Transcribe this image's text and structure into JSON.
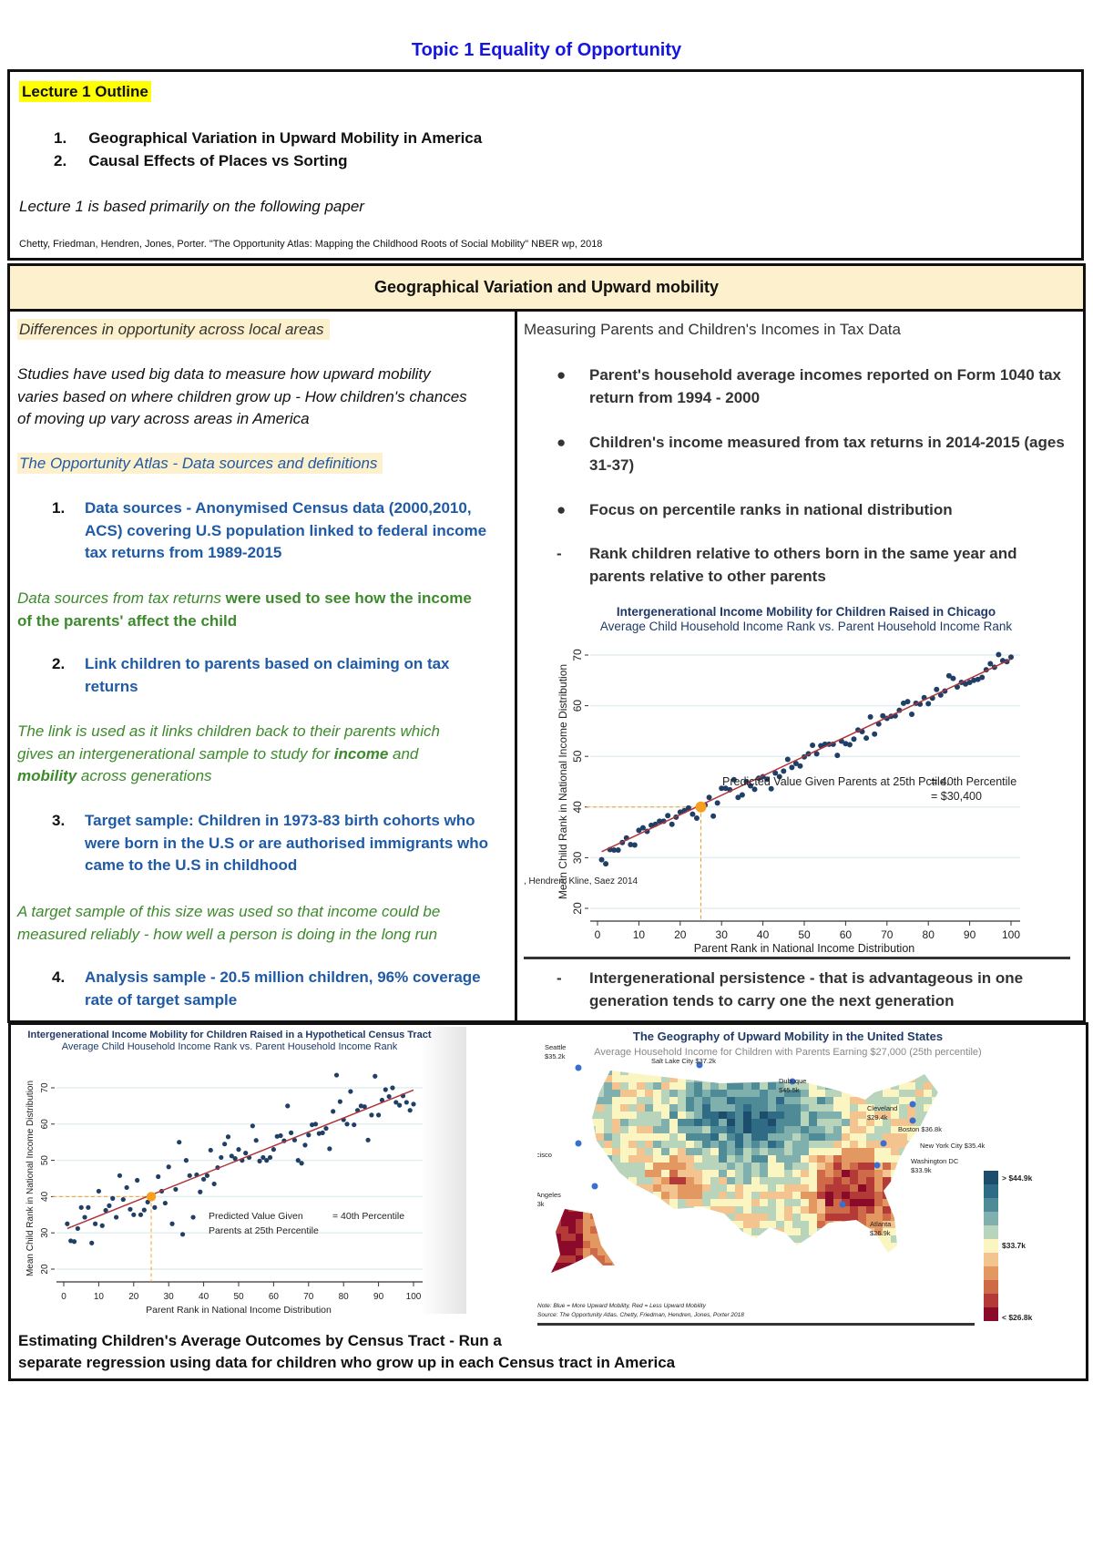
{
  "page_title": "Topic 1 Equality of Opportunity",
  "outline": {
    "heading": "Lecture 1 Outline",
    "items": [
      {
        "num": "1.",
        "text": "Geographical Variation in Upward Mobility in America"
      },
      {
        "num": "2.",
        "text": "Causal Effects of Places vs Sorting"
      }
    ],
    "note": "Lecture 1 is based primarily on the following paper",
    "citation": "Chetty, Friedman, Hendren, Jones, Porter. \"The Opportunity Atlas: Mapping the Childhood Roots of Social Mobility\" NBER wp, 2018"
  },
  "section_header": "Geographical Variation and Upward mobility",
  "left": {
    "heading1": "Differences in opportunity across local areas",
    "para1": [
      "Studies have used big data to measure how upward mobility",
      "varies based on where children grow up - How children's chances",
      "of moving up vary across areas in America"
    ],
    "heading2": "The Opportunity Atlas - Data sources and definitions",
    "item1": {
      "num": "1.",
      "lines": [
        "Data sources - Anonymised Census data (2000,2010,",
        "ACS) covering U.S population linked to federal income",
        "tax returns from 1989-2015"
      ]
    },
    "note1": {
      "italic": "Data sources from tax returns",
      "rest": " were used to see how the income",
      "line2": "of the parents' affect the child"
    },
    "item2": {
      "num": "2.",
      "lines": [
        "Link children to parents based on claiming on tax",
        "returns"
      ]
    },
    "note2": {
      "line1": "The link is used as it links children back to their parents which",
      "line2a": "gives an intergenerational sample to study for ",
      "line2b": "income",
      "line2c": " and",
      "line3a": "mobility",
      "line3b": " across generations"
    },
    "item3": {
      "num": "3.",
      "lines": [
        "Target sample: Children in 1973-83 birth cohorts who",
        "were born in the U.S or are authorised immigrants who",
        "came to the U.S in childhood"
      ]
    },
    "note3": [
      "A target sample of this size was used so that income could be",
      "measured reliably - how well a person is doing in the long run"
    ],
    "item4": {
      "num": "4.",
      "lines": [
        "Analysis sample - 20.5 million children, 96% coverage",
        "rate of target sample"
      ]
    }
  },
  "right": {
    "heading": "Measuring Parents and Children's Incomes in Tax Data",
    "bullets": [
      {
        "marker": "●",
        "lines": [
          "Parent's household average incomes reported on Form 1040 tax",
          "return from 1994 - 2000"
        ]
      },
      {
        "marker": "●",
        "lines": [
          "Children's income measured from tax returns in 2014-2015 (ages",
          "31-37)"
        ]
      },
      {
        "marker": "●",
        "lines": [
          "Focus on percentile ranks in national distribution"
        ]
      },
      {
        "marker": "-",
        "lines": [
          "Rank children relative to others born in the same year and",
          "parents relative to other parents"
        ]
      }
    ],
    "last": {
      "marker": "-",
      "lines": [
        "Intergenerational persistence - that is advantageous in one",
        "generation tends to carry one the next generation"
      ]
    }
  },
  "chart_data": [
    {
      "type": "scatter",
      "title": "Intergenerational Income Mobility for Children Raised in Chicago",
      "subtitle": "Average Child Household Income Rank vs. Parent Household Income Rank",
      "xlabel": "Parent Rank in National Income Distribution",
      "ylabel": "Mean Child Rank in National Income Distribution",
      "xlim": [
        0,
        100
      ],
      "ylim": [
        20,
        70
      ],
      "xticks": [
        0,
        10,
        20,
        30,
        40,
        50,
        60,
        70,
        80,
        90,
        100
      ],
      "yticks": [
        20,
        30,
        40,
        50,
        60,
        70
      ],
      "grid": true,
      "annotation": "Predicted Value Given Parents at 25th Pctile.",
      "annotation_value1": "= 40th Percentile",
      "annotation_value2": "= $30,400",
      "source": ", Hendren, Kline, Saez 2014",
      "highlight": {
        "x": 25,
        "y": 40
      },
      "fit": {
        "intercept": 30.8,
        "slope": 0.384
      },
      "colors": {
        "points": "#1f3f66",
        "fit": "#b0353b",
        "highlight": "#f7a020"
      },
      "points": [
        [
          1,
          29.6
        ],
        [
          2,
          28.8
        ],
        [
          3,
          31.6
        ],
        [
          4,
          31.5
        ],
        [
          5,
          31.5
        ],
        [
          6,
          33
        ],
        [
          7,
          33.9
        ],
        [
          8,
          32.6
        ],
        [
          9,
          32.5
        ],
        [
          10,
          35.4
        ],
        [
          11,
          35.9
        ],
        [
          12,
          35.2
        ],
        [
          13,
          36.4
        ],
        [
          14,
          36.6
        ],
        [
          15,
          37.2
        ],
        [
          16,
          37.2
        ],
        [
          17,
          38.3
        ],
        [
          18,
          36.6
        ],
        [
          19,
          38
        ],
        [
          20,
          39
        ],
        [
          21,
          39.3
        ],
        [
          22,
          39.8
        ],
        [
          23,
          38.6
        ],
        [
          24,
          37.8
        ],
        [
          26,
          40.4
        ],
        [
          27,
          41.9
        ],
        [
          28,
          38.2
        ],
        [
          29,
          40.8
        ],
        [
          30,
          43.7
        ],
        [
          31,
          43.7
        ],
        [
          32,
          43.4
        ],
        [
          33,
          45.4
        ],
        [
          34,
          41.9
        ],
        [
          35,
          42.4
        ],
        [
          36,
          45
        ],
        [
          37,
          44.2
        ],
        [
          38,
          43.5
        ],
        [
          39,
          45.7
        ],
        [
          40,
          46
        ],
        [
          41,
          45.5
        ],
        [
          42,
          43.6
        ],
        [
          43,
          46.7
        ],
        [
          44,
          46
        ],
        [
          45,
          47.1
        ],
        [
          46,
          49.4
        ],
        [
          47,
          47.8
        ],
        [
          48,
          48.6
        ],
        [
          49,
          48.1
        ],
        [
          50,
          49.9
        ],
        [
          51,
          50.5
        ],
        [
          52,
          52.2
        ],
        [
          53,
          50.5
        ],
        [
          54,
          52.1
        ],
        [
          55,
          52.4
        ],
        [
          56,
          52.4
        ],
        [
          57,
          52.4
        ],
        [
          58,
          50.2
        ],
        [
          59,
          53
        ],
        [
          60,
          52.5
        ],
        [
          61,
          52.3
        ],
        [
          62,
          53.4
        ],
        [
          63,
          55.2
        ],
        [
          64,
          54.9
        ],
        [
          65,
          53.6
        ],
        [
          66,
          57.8
        ],
        [
          67,
          54.4
        ],
        [
          68,
          56.4
        ],
        [
          69,
          58
        ],
        [
          70,
          57.5
        ],
        [
          71,
          57.9
        ],
        [
          72,
          58
        ],
        [
          73,
          59.1
        ],
        [
          74,
          60.5
        ],
        [
          75,
          60.8
        ],
        [
          76,
          58.3
        ],
        [
          77,
          60.5
        ],
        [
          78,
          60.3
        ],
        [
          79,
          61.6
        ],
        [
          80,
          60.4
        ],
        [
          81,
          61.5
        ],
        [
          82,
          63.2
        ],
        [
          83,
          62.1
        ],
        [
          84,
          62.9
        ],
        [
          85,
          65.9
        ],
        [
          86,
          65.4
        ],
        [
          87,
          63.7
        ],
        [
          88,
          64.6
        ],
        [
          89,
          64.3
        ],
        [
          90,
          64.6
        ],
        [
          91,
          65
        ],
        [
          92,
          65.2
        ],
        [
          93,
          65.6
        ],
        [
          94,
          67.1
        ],
        [
          95,
          68.3
        ],
        [
          96,
          67.6
        ],
        [
          97,
          70.1
        ],
        [
          98,
          68.9
        ],
        [
          99,
          68.7
        ],
        [
          100,
          69.6
        ]
      ]
    },
    {
      "type": "scatter",
      "title": "Intergenerational Income Mobility for Children Raised in a Hypothetical Census Tract",
      "subtitle": "Average Child Household Income Rank vs. Parent Household Income Rank",
      "xlabel": "Parent Rank in National Income Distribution",
      "ylabel": "Mean Child Rank in National Income Distribution",
      "xlim": [
        0,
        100
      ],
      "ylim": [
        20,
        70
      ],
      "xticks": [
        0,
        10,
        20,
        30,
        40,
        50,
        60,
        70,
        80,
        90,
        100
      ],
      "yticks": [
        20,
        30,
        40,
        50,
        60,
        70
      ],
      "grid": true,
      "annotation1": "Predicted Value Given",
      "annotation2": "Parents at 25th Percentile",
      "annotation_value": "= 40th Percentile",
      "highlight": {
        "x": 25,
        "y": 40
      },
      "fit": {
        "intercept": 30.8,
        "slope": 0.386
      },
      "colors": {
        "points": "#1f3f66",
        "fit": "#b0353b",
        "highlight": "#f7a020"
      },
      "points": [
        [
          1,
          32.5
        ],
        [
          2,
          27.8
        ],
        [
          3,
          27.6
        ],
        [
          4,
          31.2
        ],
        [
          5,
          37
        ],
        [
          6,
          34.3
        ],
        [
          7,
          37
        ],
        [
          8,
          27.2
        ],
        [
          9,
          32.5
        ],
        [
          10,
          41.5
        ],
        [
          11,
          32
        ],
        [
          12,
          36.2
        ],
        [
          13,
          37.5
        ],
        [
          14,
          39.5
        ],
        [
          15,
          34.3
        ],
        [
          16,
          45.8
        ],
        [
          17,
          39.2
        ],
        [
          18,
          42.5
        ],
        [
          19,
          36.5
        ],
        [
          20,
          35
        ],
        [
          21,
          44.5
        ],
        [
          22,
          35
        ],
        [
          23,
          36.3
        ],
        [
          24,
          38.5
        ],
        [
          26,
          37
        ],
        [
          27,
          45.5
        ],
        [
          28,
          41.5
        ],
        [
          29,
          38.2
        ],
        [
          30,
          48.2
        ],
        [
          31,
          32.5
        ],
        [
          32,
          42
        ],
        [
          33,
          55
        ],
        [
          34,
          29.6
        ],
        [
          35,
          50
        ],
        [
          36,
          45.8
        ],
        [
          37,
          34.3
        ],
        [
          38,
          46
        ],
        [
          39,
          41.3
        ],
        [
          40,
          44.8
        ],
        [
          41,
          45.8
        ],
        [
          42,
          52.8
        ],
        [
          43,
          43.5
        ],
        [
          44,
          48
        ],
        [
          45,
          50.8
        ],
        [
          46,
          54.5
        ],
        [
          47,
          56.5
        ],
        [
          48,
          51.2
        ],
        [
          49,
          50.5
        ],
        [
          50,
          53
        ],
        [
          51,
          50
        ],
        [
          52,
          52
        ],
        [
          53,
          50.8
        ],
        [
          54,
          59.5
        ],
        [
          55,
          55.5
        ],
        [
          56,
          49.8
        ],
        [
          57,
          50.8
        ],
        [
          58,
          50
        ],
        [
          59,
          50.8
        ],
        [
          60,
          53
        ],
        [
          61,
          56.6
        ],
        [
          62,
          56.8
        ],
        [
          63,
          55.4
        ],
        [
          64,
          65
        ],
        [
          65,
          57.6
        ],
        [
          66,
          55.6
        ],
        [
          67,
          50
        ],
        [
          68,
          49.2
        ],
        [
          69,
          54.2
        ],
        [
          70,
          57
        ],
        [
          71,
          59.8
        ],
        [
          72,
          60
        ],
        [
          73,
          57.4
        ],
        [
          74,
          57.6
        ],
        [
          75,
          58.8
        ],
        [
          76,
          53.2
        ],
        [
          77,
          63.5
        ],
        [
          78,
          73.5
        ],
        [
          79,
          66.2
        ],
        [
          80,
          61.2
        ],
        [
          81,
          60
        ],
        [
          82,
          69
        ],
        [
          83,
          59.8
        ],
        [
          84,
          63.8
        ],
        [
          85,
          65
        ],
        [
          86,
          64.8
        ],
        [
          87,
          55.6
        ],
        [
          88,
          62.5
        ],
        [
          89,
          73.2
        ],
        [
          90,
          62.5
        ],
        [
          91,
          66.6
        ],
        [
          92,
          69.5
        ],
        [
          93,
          67.6
        ],
        [
          94,
          70
        ],
        [
          95,
          66
        ],
        [
          96,
          65.2
        ],
        [
          97,
          67.8
        ],
        [
          98,
          66
        ],
        [
          99,
          63.8
        ],
        [
          100,
          65.5
        ]
      ]
    }
  ],
  "map": {
    "title": "The Geography of Upward Mobility in the United States",
    "subtitle": "Average Household Income for Children with Parents Earning $27,000 (25th percentile)",
    "legend": [
      "> $44.9k",
      "$33.7k",
      "< $26.8k"
    ],
    "legend_colors": [
      "#1d4d6d",
      "#2f6b84",
      "#4f8a97",
      "#7fb0ad",
      "#b8d5bb",
      "#fbf5c2",
      "#f3c48f",
      "#e39862",
      "#cf6a48",
      "#b33a36",
      "#8b0a2a"
    ],
    "cities": [
      {
        "name": "Seattle",
        "value": "$35.2k"
      },
      {
        "name": "Salt Lake City",
        "value": "$37.2k"
      },
      {
        "name": "Dubuque",
        "value": "$45.5k"
      },
      {
        "name": "Cleveland",
        "value": "$29.4k"
      },
      {
        "name": "Boston",
        "value": "$36.8k"
      },
      {
        "name": "New York City",
        "value": "$35.4k"
      },
      {
        "name": "Washington DC",
        "value": "$33.9k"
      },
      {
        "name": "San Francisco Bay Area",
        "value": "$37.2k"
      },
      {
        "name": "Los Angeles",
        "value": "$34.3k"
      },
      {
        "name": "Atlanta",
        "value": "$26.9k"
      }
    ],
    "note": "Note: Blue = More Upward Mobility, Red = Less Upward Mobility",
    "source": "Source: The Opportunity Atlas. Chetty, Friedman, Hendren, Jones, Porter 2018"
  },
  "bottom_text": [
    "Estimating Children's Average Outcomes by Census Tract - Run a",
    "separate regression using data for children who grow up in each Census tract in America"
  ]
}
